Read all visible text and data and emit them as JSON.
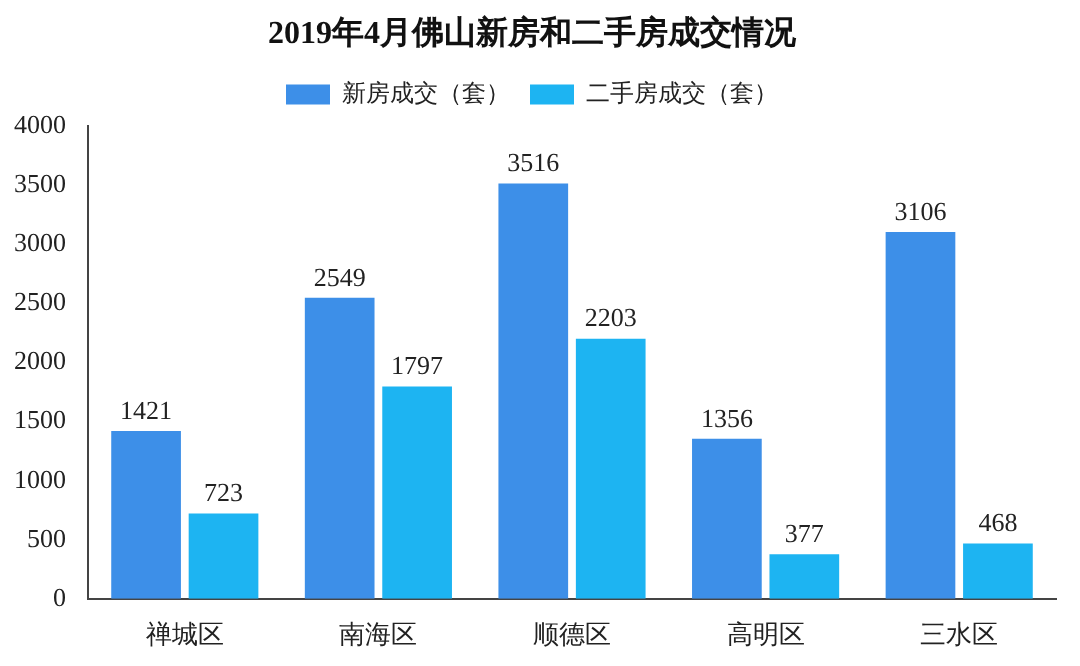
{
  "chart_data": {
    "type": "bar",
    "title": "2019年4月佛山新房和二手房成交情况",
    "categories": [
      "禅城区",
      "南海区",
      "顺德区",
      "高明区",
      "三水区"
    ],
    "series": [
      {
        "name": "新房成交（套）",
        "color": "#3d8fe8",
        "values": [
          1421,
          2549,
          3516,
          1356,
          3106
        ]
      },
      {
        "name": "二手房成交（套）",
        "color": "#1db4f2",
        "values": [
          723,
          1797,
          2203,
          377,
          468
        ]
      }
    ],
    "ylim": [
      0,
      4000
    ],
    "yticks": [
      0,
      500,
      1000,
      1500,
      2000,
      2500,
      3000,
      3500,
      4000
    ],
    "grid": false,
    "legend": "top",
    "data_labels": true
  }
}
